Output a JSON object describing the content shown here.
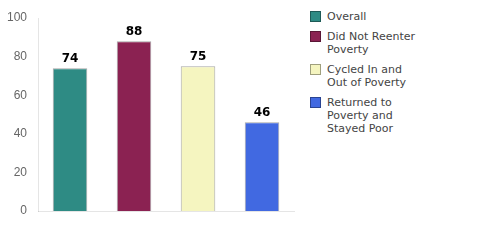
{
  "chart_data": {
    "type": "bar",
    "categories": [
      "Overall",
      "Did Not Reenter\nPoverty",
      "Cycled In and\nOut of Poverty",
      "Returned to\nPoverty and\nStayed Poor"
    ],
    "values": [
      74,
      88,
      75,
      46
    ],
    "colors": [
      "#2e8b84",
      "#8b2252",
      "#f5f5c0",
      "#4169e1"
    ],
    "ylim": [
      0,
      100
    ],
    "yticks": [
      0,
      20,
      40,
      60,
      80,
      100
    ],
    "grid": false,
    "legend": "right",
    "data_labels": true,
    "tick_labels": "y"
  }
}
